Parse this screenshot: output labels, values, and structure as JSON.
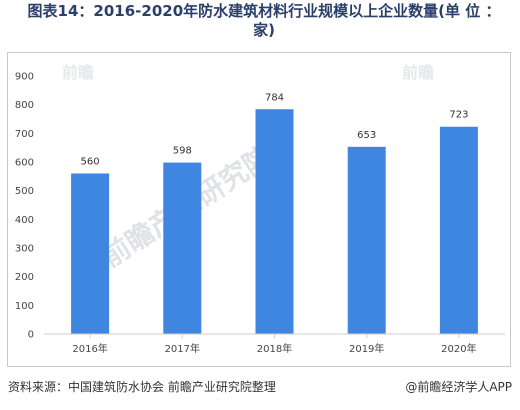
{
  "title": "图表14：2016-2020年防水建筑材料行业规模以上企业数量(单 位 ：家)",
  "footer": {
    "source": "资料来源：中国建筑防水协会 前瞻产业研究院整理",
    "brand": "@前瞻经济学人APP"
  },
  "watermark": {
    "main": "前瞻产业研究院",
    "corner": "前瞻"
  },
  "colors": {
    "bar": "#3f86e0",
    "axis": "#cccccc"
  },
  "chart_data": {
    "type": "bar",
    "categories": [
      "2016年",
      "2017年",
      "2018年",
      "2019年",
      "2020年"
    ],
    "values": [
      560,
      598,
      784,
      653,
      723
    ],
    "ylim": [
      0,
      900
    ],
    "yticks": [
      0,
      100,
      200,
      300,
      400,
      500,
      600,
      700,
      800,
      900
    ],
    "grid": false
  }
}
